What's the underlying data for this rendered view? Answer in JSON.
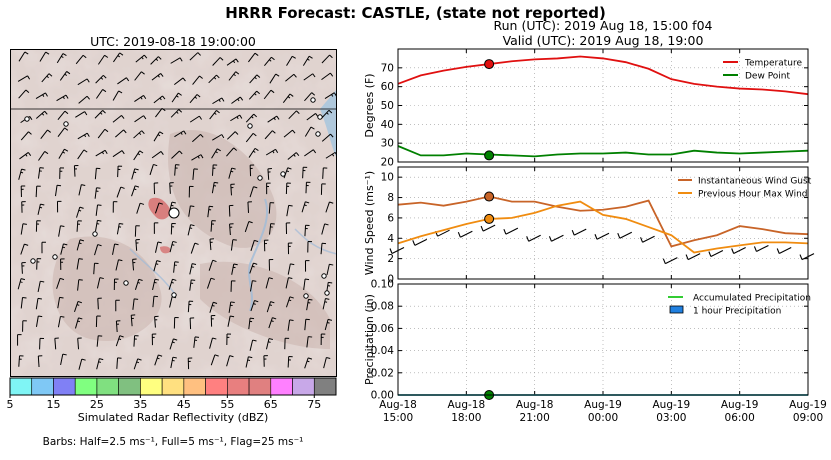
{
  "header": {
    "suptitle": "HRRR Forecast: CASTLE, (state not reported)",
    "run": "Run (UTC): 2019 Aug 18, 15:00 f04",
    "valid": "Valid (UTC): 2019 Aug 18, 19:00"
  },
  "map": {
    "title": "UTC: 2019-08-18 19:00:00",
    "colorbar_label": "Simulated Radar Reflectivity (dBZ)",
    "colorbar_ticks": [
      "5",
      "15",
      "25",
      "35",
      "45",
      "55",
      "65",
      "75"
    ],
    "colorbar_colors": [
      "#7ff5f5",
      "#7fc8f5",
      "#8080f5",
      "#80ff80",
      "#80e080",
      "#80c080",
      "#ffff80",
      "#ffe080",
      "#ffc080",
      "#ff8080",
      "#e87f7f",
      "#e08080",
      "#ff80ff",
      "#c8a8e8",
      "#808080"
    ],
    "barbs_note": "Barbs: Half=2.5 ms⁻¹, Full=5 ms⁻¹, Flag=25 ms⁻¹"
  },
  "chart_data": [
    {
      "type": "line",
      "ylabel": "Degrees (F)",
      "ylim": [
        20,
        80
      ],
      "yticks": [
        "20",
        "30",
        "40",
        "50",
        "60",
        "70"
      ],
      "grid": true,
      "legend": "top-right",
      "x": [
        0,
        1,
        2,
        3,
        4,
        5,
        6,
        7,
        8,
        9,
        10,
        11,
        12,
        13,
        14,
        15,
        16,
        17,
        18
      ],
      "series": [
        {
          "name": "Temperature",
          "color": "#e01010",
          "values": [
            61.5,
            66,
            68.5,
            70.5,
            72,
            73.5,
            74.5,
            75,
            76,
            75,
            73,
            69.5,
            64,
            61.5,
            60,
            59,
            58.5,
            57.5,
            56
          ]
        },
        {
          "name": "Dew Point",
          "color": "#008000",
          "values": [
            28.5,
            23.5,
            23.5,
            24.5,
            24,
            23.5,
            23,
            24,
            24.5,
            24.5,
            25,
            24,
            24,
            26,
            25,
            24.5,
            25,
            25.5,
            26
          ]
        }
      ],
      "markers": [
        {
          "x": 4,
          "y": 72,
          "color": "#e01010"
        },
        {
          "x": 4,
          "y": 23.5,
          "color": "#008000"
        }
      ]
    },
    {
      "type": "line",
      "ylabel": "Wind Speed (ms⁻¹)",
      "ylim": [
        0,
        11
      ],
      "yticks": [
        "0",
        "2",
        "4",
        "6",
        "8",
        "10"
      ],
      "grid": true,
      "legend": "top-right",
      "x": [
        0,
        1,
        2,
        3,
        4,
        5,
        6,
        7,
        8,
        9,
        10,
        11,
        12,
        13,
        14,
        15,
        16,
        17,
        18
      ],
      "series": [
        {
          "name": "Instantaneous Wind Gust",
          "color": "#c86428",
          "values": [
            7.3,
            7.5,
            7.2,
            7.6,
            8.1,
            7.6,
            7.6,
            7.1,
            6.7,
            6.8,
            7.1,
            7.7,
            3.2,
            3.8,
            4.3,
            5.2,
            4.9,
            4.5,
            4.4
          ]
        },
        {
          "name": "Previous Hour Max Wind",
          "color": "#f08c10",
          "values": [
            3.5,
            4.2,
            4.8,
            5.4,
            5.9,
            6.0,
            6.5,
            7.2,
            7.6,
            6.3,
            5.9,
            5.1,
            4.3,
            2.6,
            3.0,
            3.3,
            3.6,
            3.6,
            3.5
          ]
        }
      ],
      "markers": [
        {
          "x": 4,
          "y": 8.1,
          "color": "#c86428"
        },
        {
          "x": 4,
          "y": 5.9,
          "color": "#f08c10"
        }
      ]
    },
    {
      "type": "bar",
      "ylabel": "Precipitation (in)",
      "ylim": [
        0,
        0.1
      ],
      "yticks": [
        "0.00",
        "0.02",
        "0.04",
        "0.06",
        "0.08",
        "0.10"
      ],
      "grid": true,
      "legend": "top-right",
      "x": [
        0,
        1,
        2,
        3,
        4,
        5,
        6,
        7,
        8,
        9,
        10,
        11,
        12,
        13,
        14,
        15,
        16,
        17,
        18
      ],
      "xticks": [
        {
          "x": 0,
          "l1": "Aug-18",
          "l2": "15:00"
        },
        {
          "x": 3,
          "l1": "Aug-18",
          "l2": "18:00"
        },
        {
          "x": 6,
          "l1": "Aug-18",
          "l2": "21:00"
        },
        {
          "x": 9,
          "l1": "Aug-19",
          "l2": "00:00"
        },
        {
          "x": 12,
          "l1": "Aug-19",
          "l2": "03:00"
        },
        {
          "x": 15,
          "l1": "Aug-19",
          "l2": "06:00"
        },
        {
          "x": 18,
          "l1": "Aug-19",
          "l2": "09:00"
        }
      ],
      "series": [
        {
          "name": "Accumulated Precipitation",
          "color": "#33cc33",
          "values": [
            0,
            0,
            0,
            0,
            0,
            0,
            0,
            0,
            0,
            0,
            0,
            0,
            0,
            0,
            0,
            0,
            0,
            0,
            0
          ]
        },
        {
          "name": "1 hour Precipitation",
          "color": "#2080e0",
          "values": [
            0,
            0,
            0,
            0,
            0,
            0,
            0,
            0,
            0,
            0,
            0,
            0,
            0,
            0,
            0,
            0,
            0,
            0,
            0
          ]
        }
      ],
      "markers": [
        {
          "x": 4,
          "y": 0,
          "color": "#008000"
        }
      ]
    }
  ]
}
